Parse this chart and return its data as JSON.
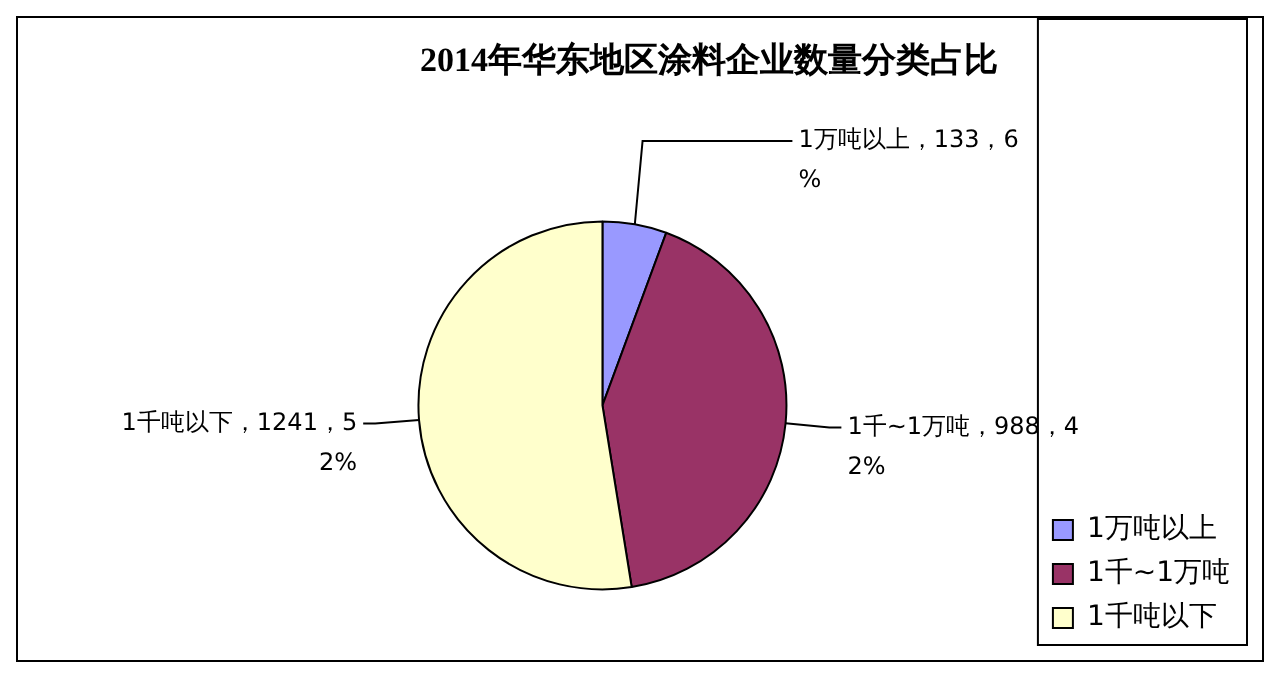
{
  "chart_data": {
    "type": "pie",
    "title": "2014年华东地区涂料企业数量分类占比",
    "categories": [
      "1万吨以上",
      "1千~1万吨",
      "1千吨以下"
    ],
    "values": [
      133,
      988,
      1241
    ],
    "colors": [
      "#9999ff",
      "#993366",
      "#ffffcc"
    ],
    "value_labels": [
      "1万吨以上，133，6%",
      "1千~1万吨，988，42%",
      "1千吨以下，1241，52%"
    ],
    "legend": "bottom right"
  }
}
